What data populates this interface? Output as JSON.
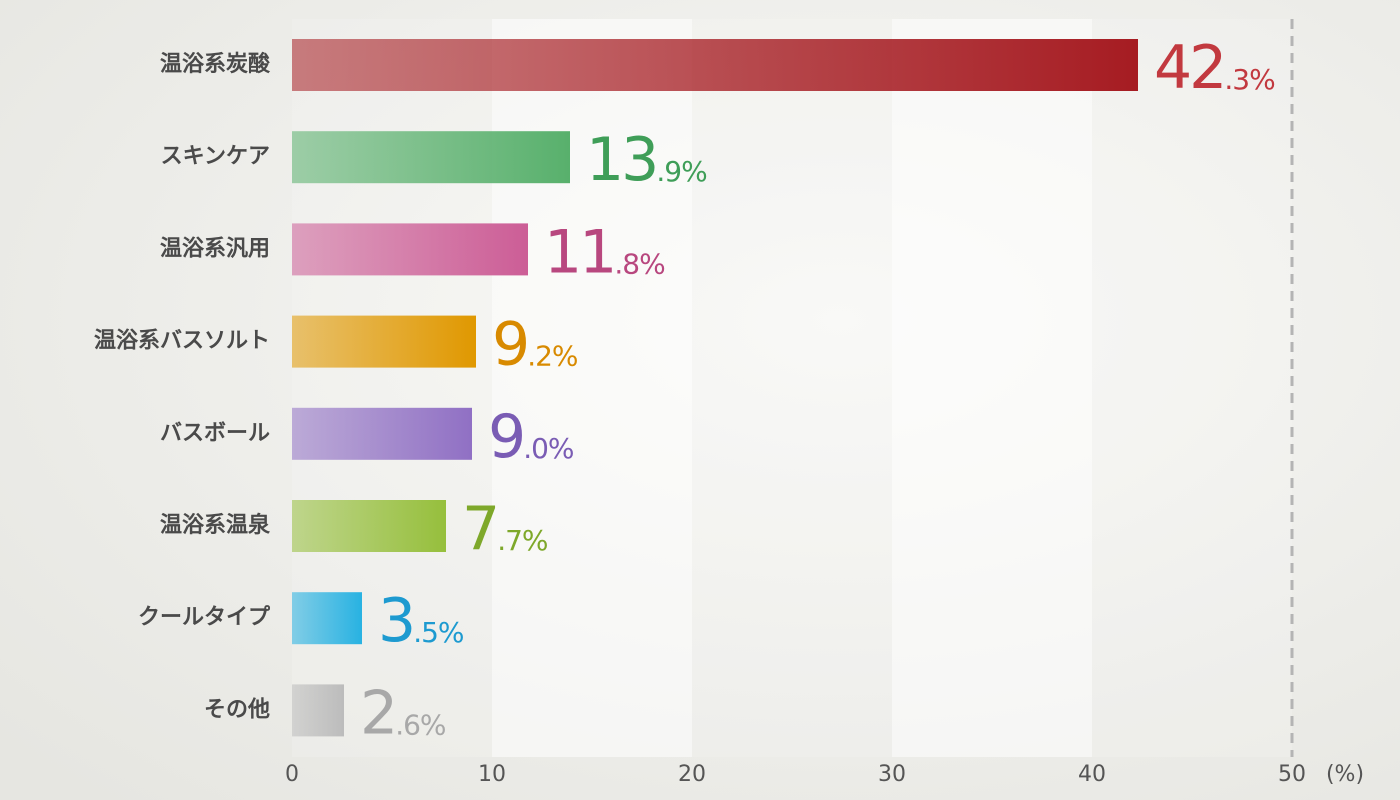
{
  "chart_data": {
    "type": "bar",
    "orientation": "horizontal",
    "categories": [
      "温浴系炭酸",
      "スキンケア",
      "温浴系汎用",
      "温浴系バスソルト",
      "バスボール",
      "温浴系温泉",
      "クールタイプ",
      "その他"
    ],
    "values": [
      42.3,
      13.9,
      11.8,
      9.2,
      9.0,
      7.7,
      3.5,
      2.6
    ],
    "value_labels": [
      "42.3%",
      "13.9%",
      "11.8%",
      "9.2%",
      "9.0%",
      "7.7%",
      "3.5%",
      "2.6%"
    ],
    "colors": [
      "#a61c22",
      "#58b06c",
      "#cc5d96",
      "#e09800",
      "#9070c4",
      "#96bf3c",
      "#28b2e2",
      "#bcbcbc"
    ],
    "label_colors": [
      "#c2393f",
      "#3f9e58",
      "#b8477f",
      "#d88a00",
      "#7a5cb4",
      "#7ea82a",
      "#1d9ad0",
      "#a8a8a8"
    ],
    "xlim": [
      0,
      50
    ],
    "xticks": [
      0,
      10,
      20,
      30,
      40,
      50
    ],
    "x_label": "(%)"
  }
}
